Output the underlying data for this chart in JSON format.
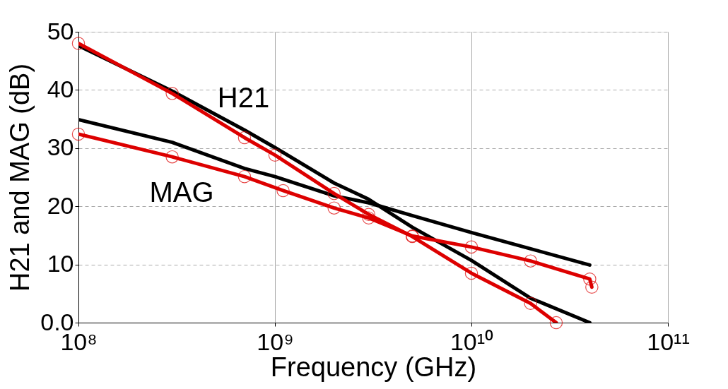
{
  "chart_data": {
    "type": "line",
    "xlabel": "Frequency (GHz)",
    "ylabel": "H21 and MAG (dB)",
    "log": "x",
    "grid": true,
    "xlim": [
      100000000,
      100000000000
    ],
    "ylim": [
      0,
      50
    ],
    "xticks": [
      {
        "value": 100000000,
        "label": "10⁸"
      },
      {
        "value": 1000000000,
        "label": "10⁹"
      },
      {
        "value": 10000000000,
        "label": "10¹⁰"
      },
      {
        "value": 100000000000,
        "label": "10¹¹"
      }
    ],
    "yticks": [
      {
        "value": 0,
        "label": "0.0"
      },
      10,
      20,
      30,
      40,
      50
    ],
    "series": [
      {
        "color": "#000000",
        "marker": "none",
        "x": [
          100000000,
          300000000,
          700000000,
          1000000000,
          2000000000,
          3000000000,
          5000000000,
          10000000000,
          20000000000,
          40000000000
        ],
        "values": [
          47.6,
          39.8,
          33.1,
          30.1,
          24.0,
          21.2,
          16.4,
          10.7,
          4.2,
          0.0
        ]
      },
      {
        "color": "#000000",
        "marker": "none",
        "x": [
          100000000,
          300000000,
          700000000,
          1000000000,
          2000000000,
          3000000000,
          5000000000,
          10000000000,
          20000000000,
          40000000000
        ],
        "values": [
          34.9,
          31.0,
          26.5,
          25.1,
          21.8,
          20.6,
          18.4,
          15.5,
          12.7,
          9.9
        ]
      },
      {
        "color": "#dd0000",
        "marker": "circle",
        "x": [
          100000000,
          300000000,
          700000000,
          1000000000,
          2000000000,
          3000000000,
          5000000000,
          10000000000,
          20000000000,
          27000000000
        ],
        "values": [
          48.0,
          39.4,
          31.8,
          28.8,
          22.2,
          18.6,
          14.8,
          8.5,
          3.3,
          0.0
        ]
      },
      {
        "color": "#dd0000",
        "marker": "circle",
        "x": [
          100000000,
          300000000,
          700000000,
          1100000000,
          2000000000,
          3000000000,
          5000000000,
          10000000000,
          20000000000,
          40000000000,
          41000000000
        ],
        "values": [
          32.4,
          28.5,
          25.1,
          22.7,
          19.7,
          18.0,
          14.9,
          13.0,
          10.6,
          7.5,
          6.1
        ]
      }
    ],
    "annotations": [
      "H21",
      "MAG"
    ]
  }
}
